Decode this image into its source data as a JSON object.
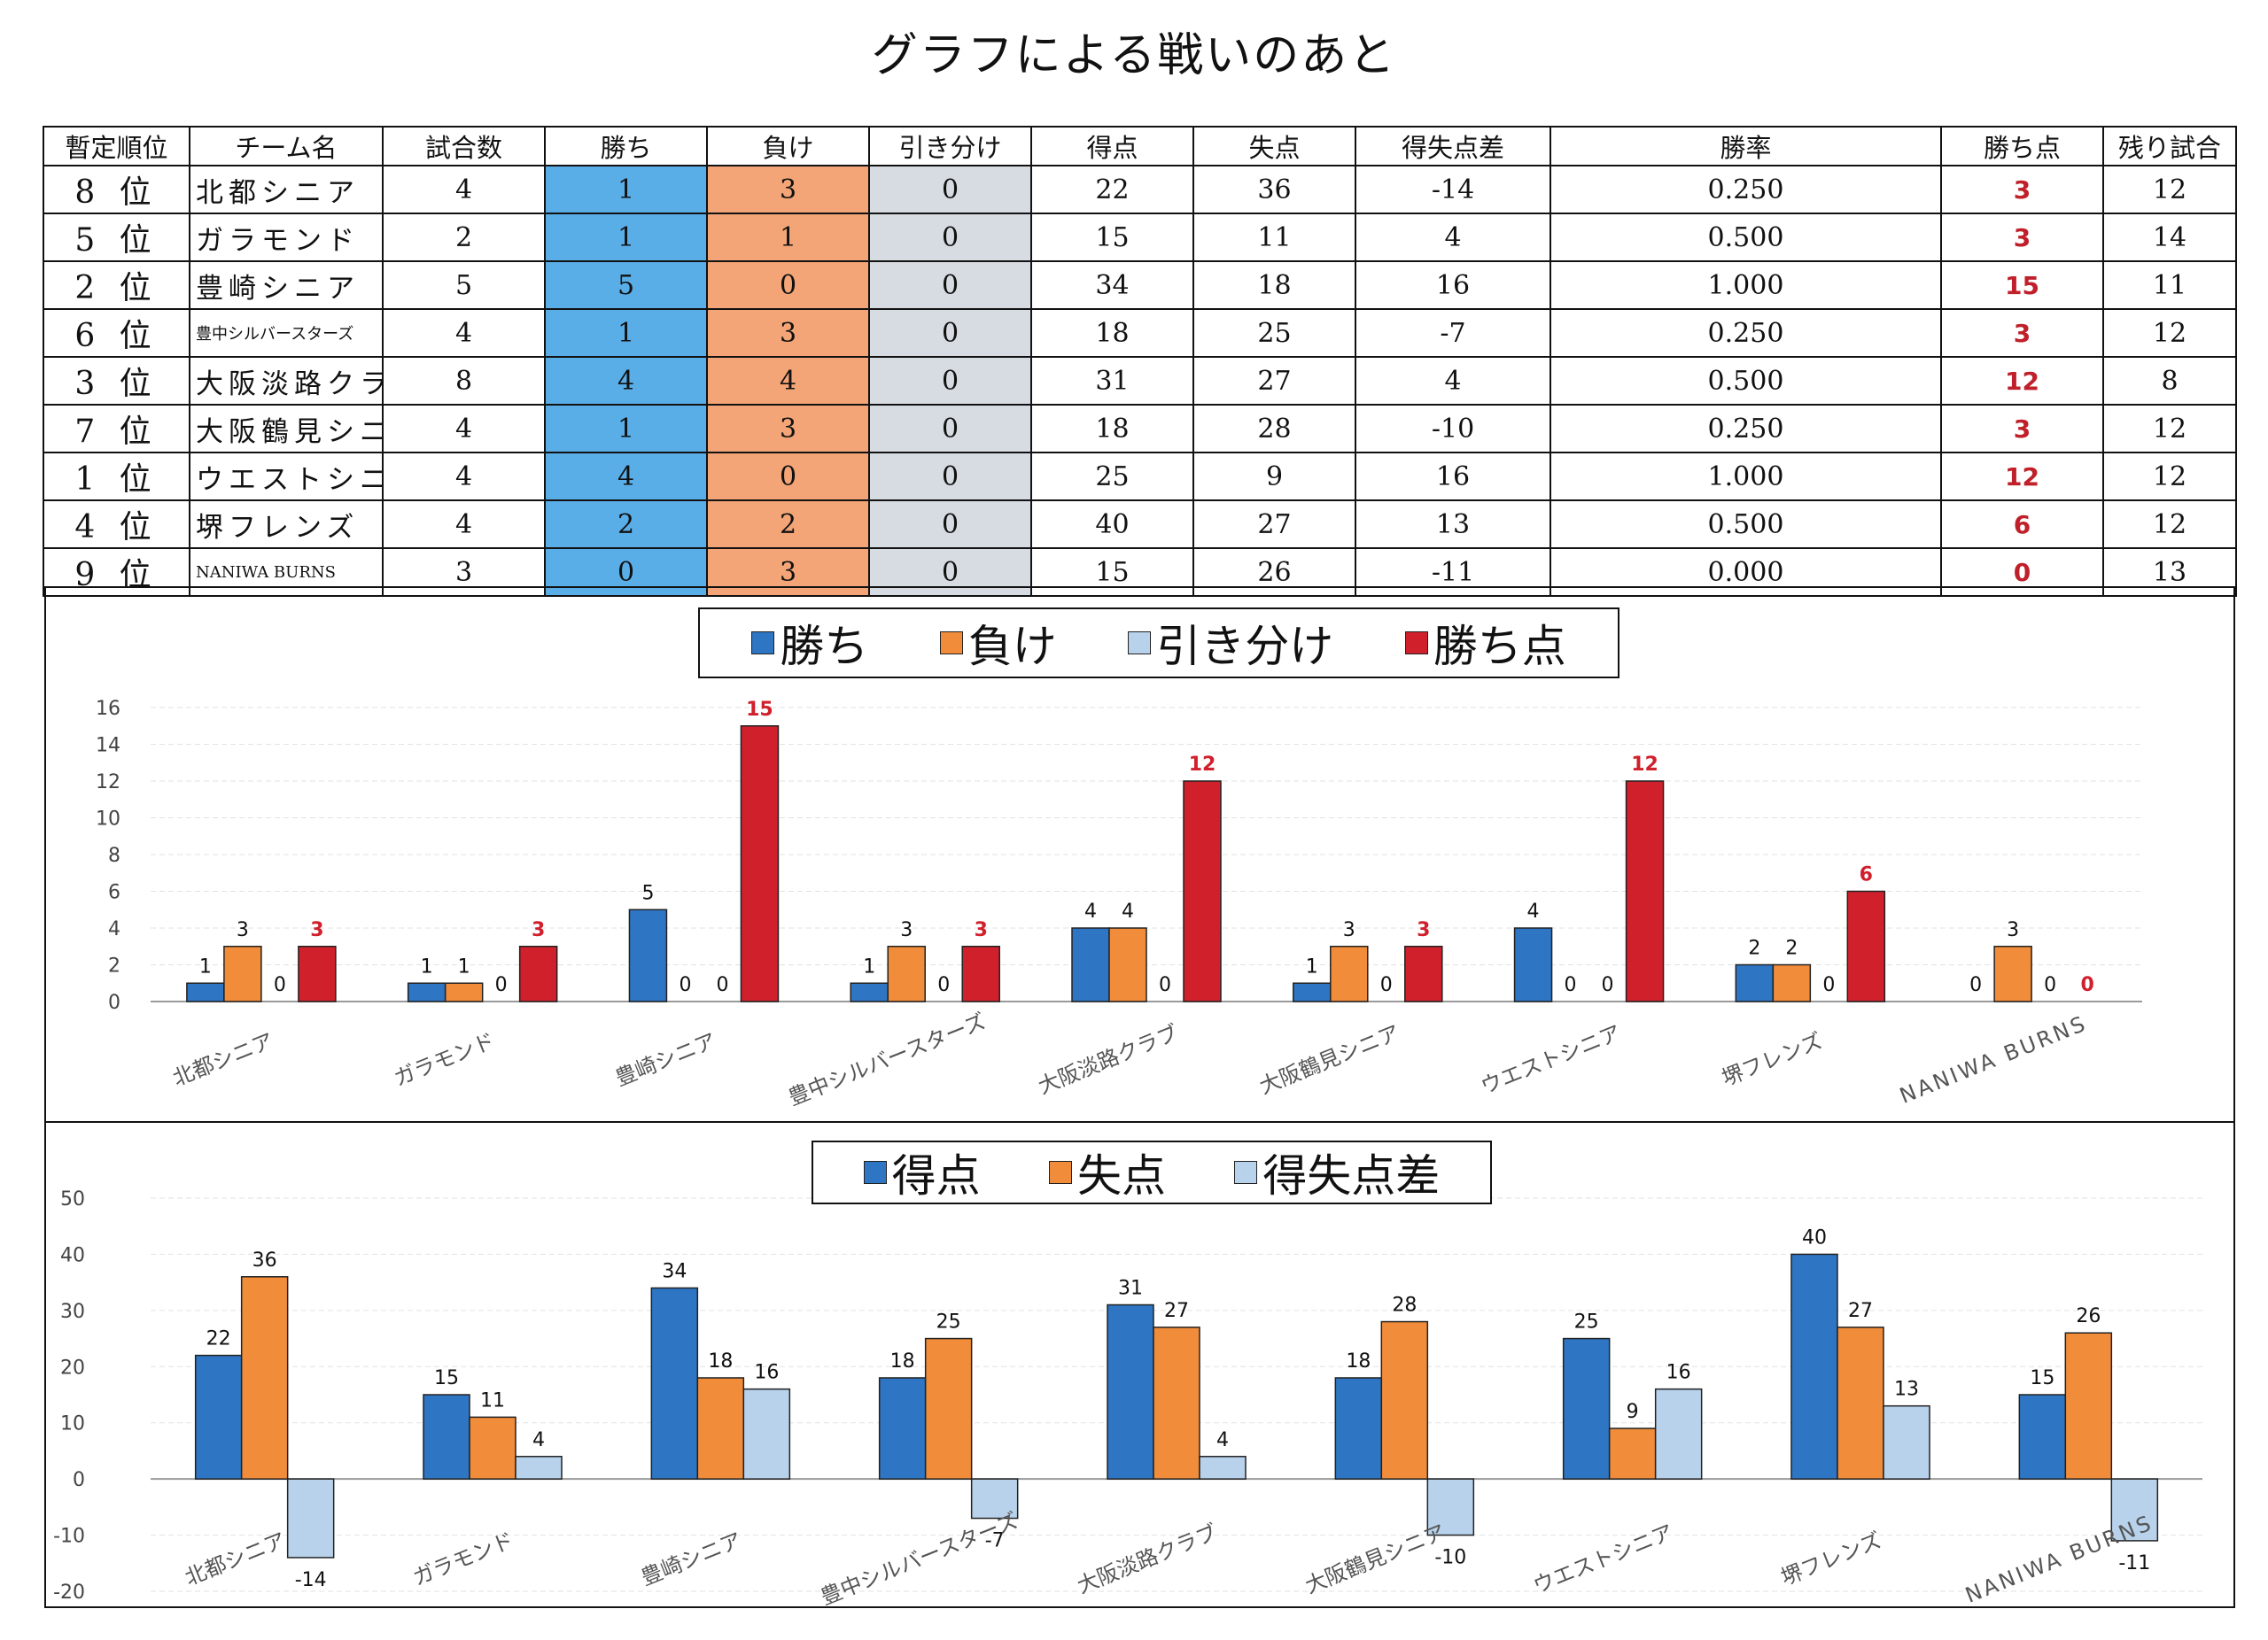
{
  "title": "グラフによる戦いのあと",
  "table": {
    "headers": [
      "暫定順位",
      "チーム名",
      "試合数",
      "勝ち",
      "負け",
      "引き分け",
      "得点",
      "失点",
      "得失点差",
      "勝率",
      "勝ち点",
      "残り試合"
    ],
    "rows": [
      {
        "rank": "8 位",
        "team": "北都シニア",
        "games": "4",
        "win": "1",
        "loss": "3",
        "draw": "0",
        "scored": "22",
        "allowed": "36",
        "diff": "-14",
        "pct": "0.250",
        "pts": "3",
        "remaining": "12"
      },
      {
        "rank": "5 位",
        "team": "ガラモンド",
        "games": "2",
        "win": "1",
        "loss": "1",
        "draw": "0",
        "scored": "15",
        "allowed": "11",
        "diff": "4",
        "pct": "0.500",
        "pts": "3",
        "remaining": "14"
      },
      {
        "rank": "2 位",
        "team": "豊崎シニア",
        "games": "5",
        "win": "5",
        "loss": "0",
        "draw": "0",
        "scored": "34",
        "allowed": "18",
        "diff": "16",
        "pct": "1.000",
        "pts": "15",
        "remaining": "11"
      },
      {
        "rank": "6 位",
        "team": "豊中シルバースターズ",
        "games": "4",
        "win": "1",
        "loss": "3",
        "draw": "0",
        "scored": "18",
        "allowed": "25",
        "diff": "-7",
        "pct": "0.250",
        "pts": "3",
        "remaining": "12"
      },
      {
        "rank": "3 位",
        "team": "大阪淡路クラブ",
        "games": "8",
        "win": "4",
        "loss": "4",
        "draw": "0",
        "scored": "31",
        "allowed": "27",
        "diff": "4",
        "pct": "0.500",
        "pts": "12",
        "remaining": "8"
      },
      {
        "rank": "7 位",
        "team": "大阪鶴見シニア",
        "games": "4",
        "win": "1",
        "loss": "3",
        "draw": "0",
        "scored": "18",
        "allowed": "28",
        "diff": "-10",
        "pct": "0.250",
        "pts": "3",
        "remaining": "12"
      },
      {
        "rank": "1 位",
        "team": "ウエストシニア",
        "games": "4",
        "win": "4",
        "loss": "0",
        "draw": "0",
        "scored": "25",
        "allowed": "9",
        "diff": "16",
        "pct": "1.000",
        "pts": "12",
        "remaining": "12"
      },
      {
        "rank": "4 位",
        "team": "堺フレンズ",
        "games": "4",
        "win": "2",
        "loss": "2",
        "draw": "0",
        "scored": "40",
        "allowed": "27",
        "diff": "13",
        "pct": "0.500",
        "pts": "6",
        "remaining": "12"
      },
      {
        "rank": "9 位",
        "team": "NANIWA BURNS",
        "games": "3",
        "win": "0",
        "loss": "3",
        "draw": "0",
        "scored": "15",
        "allowed": "26",
        "diff": "-11",
        "pct": "0.000",
        "pts": "0",
        "remaining": "13"
      }
    ]
  },
  "chart_data": [
    {
      "type": "bar",
      "categories": [
        "北都シニア",
        "ガラモンド",
        "豊崎シニア",
        "豊中シルバースターズ",
        "大阪淡路クラブ",
        "大阪鶴見シニア",
        "ウエストシニア",
        "堺フレンズ",
        "NANIWA BURNS"
      ],
      "series": [
        {
          "name": "勝ち",
          "color": "#2e75c3",
          "values": [
            1,
            1,
            5,
            1,
            4,
            1,
            4,
            2,
            0
          ]
        },
        {
          "name": "負け",
          "color": "#f08c3a",
          "values": [
            3,
            1,
            0,
            3,
            4,
            3,
            0,
            2,
            3
          ]
        },
        {
          "name": "引き分け",
          "color": "#b8d2ec",
          "values": [
            0,
            0,
            0,
            0,
            0,
            0,
            0,
            0,
            0
          ]
        },
        {
          "name": "勝ち点",
          "color": "#d0202c",
          "values": [
            3,
            3,
            15,
            3,
            12,
            3,
            12,
            6,
            0
          ]
        }
      ],
      "yticks": [
        "0",
        "2",
        "4",
        "6",
        "8",
        "10",
        "12",
        "14",
        "16"
      ],
      "ylim": [
        0,
        16
      ],
      "legend": "top-center"
    },
    {
      "type": "bar",
      "categories": [
        "北都シニア",
        "ガラモンド",
        "豊崎シニア",
        "豊中シルバースターズ",
        "大阪淡路クラブ",
        "大阪鶴見シニア",
        "ウエストシニア",
        "堺フレンズ",
        "NANIWA BURNS"
      ],
      "series": [
        {
          "name": "得点",
          "color": "#2e75c3",
          "values": [
            22,
            15,
            34,
            18,
            31,
            18,
            25,
            40,
            15
          ]
        },
        {
          "name": "失点",
          "color": "#f08c3a",
          "values": [
            36,
            11,
            18,
            25,
            27,
            28,
            9,
            27,
            26
          ]
        },
        {
          "name": "得失点差",
          "color": "#b8d2ec",
          "values": [
            -14,
            4,
            16,
            -7,
            4,
            -10,
            16,
            13,
            -11
          ]
        }
      ],
      "yticks": [
        "-20",
        "-10",
        "0",
        "10",
        "20",
        "30",
        "40",
        "50"
      ],
      "ylim": [
        -20,
        50
      ],
      "legend": "top-center"
    }
  ]
}
